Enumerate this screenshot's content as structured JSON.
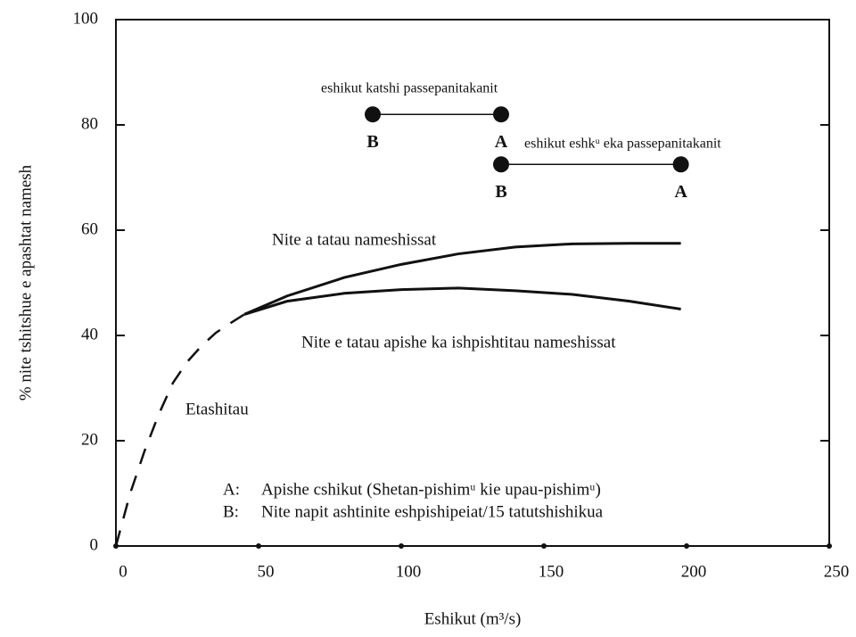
{
  "chart_data": {
    "type": "line",
    "x_label": "Eshikut (m³/s)",
    "y_label": "% nite tshitshue e apashtat namesh",
    "xlim": [
      0,
      250
    ],
    "xticks": [
      0,
      50,
      100,
      150,
      200,
      250
    ],
    "ylim": [
      0,
      100
    ],
    "yticks": [
      0,
      20,
      40,
      60,
      80,
      100
    ],
    "color": "#111111",
    "series": [
      {
        "label": "Etashitau",
        "dash": true,
        "x": [
          0,
          5,
          10,
          15,
          20,
          25,
          30,
          35,
          40,
          45
        ],
        "values": [
          0,
          10,
          18,
          25,
          31,
          35,
          38,
          40.5,
          42.3,
          44
        ]
      },
      {
        "label": "Nite a tatau nameshissat",
        "dash": false,
        "x": [
          45,
          60,
          80,
          100,
          120,
          140,
          160,
          180,
          198
        ],
        "values": [
          44,
          47.5,
          51,
          53.5,
          55.5,
          56.8,
          57.4,
          57.5,
          57.5
        ]
      },
      {
        "label": "Nite e tatau apishe ka ishpishtitau nameshissat",
        "dash": false,
        "x": [
          45,
          60,
          80,
          100,
          120,
          140,
          160,
          180,
          198
        ],
        "values": [
          44,
          46.5,
          48,
          48.7,
          49,
          48.5,
          47.8,
          46.5,
          45
        ]
      }
    ],
    "ranges": [
      {
        "label": "eshikut katshi passepanitakanit",
        "y": 82,
        "points": [
          {
            "label": "B",
            "x": 90
          },
          {
            "label": "A",
            "x": 135
          }
        ]
      },
      {
        "label": "eshikut eshkᵘ eka passepanitakanit",
        "y": 72.5,
        "points": [
          {
            "label": "B",
            "x": 135
          },
          {
            "label": "A",
            "x": 198
          }
        ]
      }
    ],
    "notes": [
      {
        "key": "A:",
        "text": "Apishe cshikut (Shetan-pishimᵘ kie upau-pishimᵘ)"
      },
      {
        "key": "B:",
        "text": "Nite napit ashtinite eshpishipeiat/15 tatutshishikua"
      }
    ]
  }
}
